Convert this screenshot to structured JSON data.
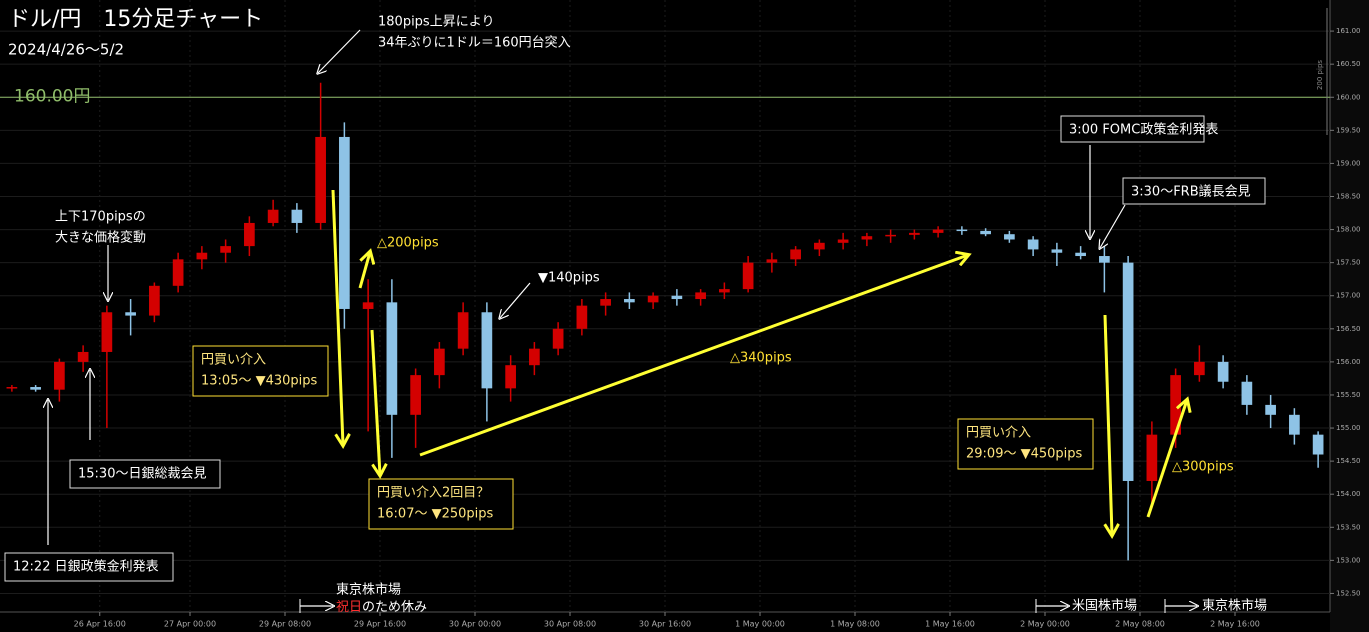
{
  "chart_data": {
    "type": "candlestick",
    "title": "ドル/円　15分足チャート",
    "subtitle": "2024/4/26～5/2",
    "open": [
      155.6,
      155.62,
      155.58,
      156.0,
      156.15,
      156.75,
      156.7,
      157.15,
      157.55,
      157.65,
      157.75,
      158.1,
      158.3,
      158.1,
      159.4,
      156.8,
      156.9,
      155.2,
      155.8,
      156.2,
      156.75,
      155.6,
      155.95,
      156.2,
      156.5,
      156.85,
      156.95,
      156.9,
      157.0,
      156.95,
      157.05,
      157.1,
      157.5,
      157.55,
      157.7,
      157.8,
      157.85,
      157.9,
      157.92,
      157.95,
      158.0,
      157.98,
      157.93,
      157.85,
      157.7,
      157.65,
      157.6,
      157.5,
      154.2,
      154.9,
      155.8,
      156.0,
      155.7,
      155.35,
      155.2,
      154.9
    ],
    "high": [
      155.65,
      155.65,
      156.05,
      156.25,
      156.85,
      156.95,
      157.2,
      157.65,
      157.75,
      157.85,
      158.2,
      158.45,
      158.4,
      160.22,
      159.62,
      157.25,
      157.25,
      155.9,
      156.3,
      156.9,
      156.9,
      156.1,
      156.3,
      156.6,
      156.95,
      157.05,
      157.05,
      157.05,
      157.1,
      157.1,
      157.2,
      157.6,
      157.65,
      157.75,
      157.85,
      157.95,
      157.95,
      158.0,
      158.0,
      158.05,
      158.05,
      158.02,
      157.98,
      157.9,
      157.8,
      157.75,
      157.75,
      157.6,
      155.1,
      155.9,
      156.25,
      156.1,
      155.8,
      155.5,
      155.3,
      154.95
    ],
    "low": [
      155.55,
      155.55,
      155.4,
      155.85,
      155.0,
      156.4,
      156.6,
      157.05,
      157.4,
      157.5,
      157.6,
      158.05,
      157.95,
      158.0,
      156.5,
      154.95,
      154.55,
      154.7,
      155.6,
      156.1,
      155.1,
      155.4,
      155.8,
      156.1,
      156.4,
      156.7,
      156.8,
      156.8,
      156.85,
      156.85,
      156.95,
      157.05,
      157.35,
      157.45,
      157.6,
      157.7,
      157.75,
      157.8,
      157.85,
      157.88,
      157.92,
      157.9,
      157.8,
      157.6,
      157.45,
      157.55,
      157.05,
      153.0,
      153.8,
      154.7,
      155.7,
      155.6,
      155.2,
      155.0,
      154.75,
      154.4
    ],
    "close": [
      155.62,
      155.58,
      156.0,
      156.15,
      156.75,
      156.7,
      157.15,
      157.55,
      157.65,
      157.75,
      158.1,
      158.3,
      158.1,
      159.4,
      156.8,
      156.9,
      155.2,
      155.8,
      156.2,
      156.75,
      155.6,
      155.95,
      156.2,
      156.5,
      156.85,
      156.95,
      156.9,
      157.0,
      156.95,
      157.05,
      157.1,
      157.5,
      157.55,
      157.7,
      157.8,
      157.85,
      157.9,
      157.92,
      157.95,
      158.0,
      157.98,
      157.93,
      157.85,
      157.7,
      157.65,
      157.6,
      157.5,
      154.2,
      154.9,
      155.8,
      156.0,
      155.7,
      155.35,
      155.2,
      154.9,
      154.6
    ],
    "up_color": "#d40000",
    "down_color": "#8ec3e6",
    "xlim": [
      -0.5,
      55.5
    ],
    "xticks": [
      {
        "value": 3.7,
        "label": "26 Apr 16:00"
      },
      {
        "value": 7.5,
        "label": "27 Apr 00:00"
      },
      {
        "value": 11.5,
        "label": "29 Apr 08:00"
      },
      {
        "value": 15.5,
        "label": "29 Apr 16:00"
      },
      {
        "value": 19.5,
        "label": "30 Apr 00:00"
      },
      {
        "value": 23.5,
        "label": "30 Apr 08:00"
      },
      {
        "value": 27.5,
        "label": "30 Apr 16:00"
      },
      {
        "value": 31.5,
        "label": "1 May 00:00"
      },
      {
        "value": 35.5,
        "label": "1 May 08:00"
      },
      {
        "value": 39.5,
        "label": "1 May 16:00"
      },
      {
        "value": 43.5,
        "label": "2 May 00:00"
      },
      {
        "value": 47.5,
        "label": "2 May 08:00"
      },
      {
        "value": 51.5,
        "label": "2 May 16:00"
      }
    ],
    "ylim": [
      152.28,
      161.47
    ],
    "yticks": [
      {
        "value": 152.5,
        "label": "152.50"
      },
      {
        "value": 153,
        "label": "153.00"
      },
      {
        "value": 153.5,
        "label": "153.50"
      },
      {
        "value": 154,
        "label": "154.00"
      },
      {
        "value": 154.5,
        "label": "154.50"
      },
      {
        "value": 155,
        "label": "155.00"
      },
      {
        "value": 155.5,
        "label": "155.50"
      },
      {
        "value": 156,
        "label": "156.00"
      },
      {
        "value": 156.5,
        "label": "156.50"
      },
      {
        "value": 157,
        "label": "157.00"
      },
      {
        "value": 157.5,
        "label": "157.50"
      },
      {
        "value": 158,
        "label": "158.00"
      },
      {
        "value": 158.5,
        "label": "158.50"
      },
      {
        "value": 159,
        "label": "159.00"
      },
      {
        "value": 159.5,
        "label": "159.50"
      },
      {
        "value": 160,
        "label": "160.00"
      },
      {
        "value": 160.5,
        "label": "160.50"
      },
      {
        "value": 161,
        "label": "161.00"
      }
    ],
    "grid": true,
    "hline": {
      "value": 160,
      "label": "160.00円",
      "color": "#8fbc6a"
    },
    "scale_label": "200 pips",
    "annotations": [
      {
        "lines": [
          "180pips上昇により",
          "34年ぶりに1ドル＝160円台突入"
        ]
      },
      {
        "lines": [
          "上下170pipsの",
          "大きな価格変動"
        ]
      },
      {
        "lines": [
          "△200pips"
        ]
      },
      {
        "lines": [
          "▼140pips"
        ]
      },
      {
        "lines": [
          "△340pips"
        ]
      },
      {
        "lines": [
          "3:00 FOMC政策金利発表"
        ]
      },
      {
        "lines": [
          "3:30～FRB議長会見"
        ]
      },
      {
        "lines": [
          "円買い介入",
          "13:05～ ▼430pips"
        ]
      },
      {
        "lines": [
          "円買い介入2回目？",
          "16:07～ ▼250pips"
        ]
      },
      {
        "lines": [
          "円買い介入",
          "29:09～ ▼450pips"
        ]
      },
      {
        "lines": [
          "△300pips"
        ]
      },
      {
        "lines": [
          "15:30～日銀総裁会見"
        ]
      },
      {
        "lines": [
          "12:22 日銀政策金利発表"
        ]
      },
      {
        "lines": [
          "東京株市場",
          [
            "祝日",
            "のため休み"
          ]
        ],
        "accent_color": "#ff3030"
      },
      {
        "lines": [
          "米国株市場"
        ]
      },
      {
        "lines": [
          "東京株市場"
        ]
      }
    ]
  }
}
